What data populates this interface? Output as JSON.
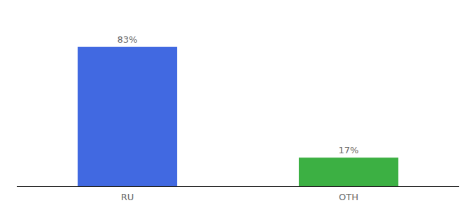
{
  "chart_data": {
    "type": "bar",
    "categories": [
      "RU",
      "OTH"
    ],
    "values": [
      83,
      17
    ],
    "value_labels": [
      "83%",
      "17%"
    ],
    "colors": [
      "#4169e1",
      "#3cb043"
    ],
    "ylim": [
      0,
      100
    ],
    "data_labels": true,
    "tick_labels": "x",
    "grid": false
  }
}
